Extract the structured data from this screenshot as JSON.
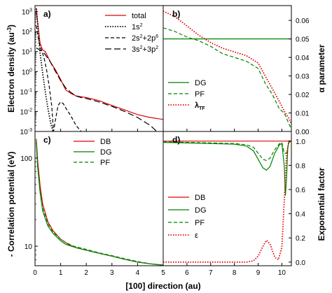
{
  "figure": {
    "xlabel": "[100] direction (au)",
    "ylabel_top_left": "Electron density (au",
    "ylabel_top_left_sup": "-3",
    "ylabel_top_left_tail": ")",
    "ylabel_top_right": "α parameter",
    "ylabel_bottom_left": "- Correlation potential (eV)",
    "ylabel_bottom_right": "Exponential factor"
  },
  "chart_data": [
    {
      "panel": "a)",
      "type": "line",
      "y_scale": "log",
      "xlim": [
        0,
        5
      ],
      "ylim": [
        0.001,
        2000
      ],
      "x_ticks": [],
      "y_ticks": [
        "10",
        "10",
        "10",
        "10",
        "10",
        "10",
        "10"
      ],
      "y_tick_exp": [
        "-3",
        "-2",
        "-1",
        "0",
        "1",
        "2",
        "3"
      ],
      "legend_position": "top-right",
      "legend": [
        {
          "label": "total",
          "style": "solid",
          "color": "#e00000"
        },
        {
          "label": "1s",
          "sup": "2",
          "style": "dotted",
          "color": "#000000"
        },
        {
          "label": "2s",
          "sup": "2",
          "mid": "+2p",
          "sup2": "6",
          "style": "dashed",
          "color": "#000000"
        },
        {
          "label": "3s",
          "sup": "2",
          "mid": "+3p",
          "sup2": "2",
          "style": "longdash",
          "color": "#000000"
        }
      ],
      "series": [
        {
          "name": "total",
          "x": [
            0.05,
            0.1,
            0.2,
            0.3,
            0.4,
            0.6,
            0.8,
            1.0,
            1.2,
            1.4,
            1.6,
            1.8,
            2.0,
            2.5,
            3.0,
            3.5,
            4.0,
            4.5,
            5.0
          ],
          "y": [
            1500,
            300,
            25,
            12,
            10,
            3,
            1.2,
            0.4,
            0.12,
            0.08,
            0.06,
            0.055,
            0.05,
            0.035,
            0.02,
            0.012,
            0.007,
            0.005,
            0.004
          ]
        },
        {
          "name": "1s2",
          "x": [
            0.05,
            0.1,
            0.2,
            0.3,
            0.4,
            0.5,
            0.6,
            0.7
          ],
          "y": [
            1400,
            250,
            8,
            0.8,
            0.1,
            0.015,
            0.003,
            0.001
          ]
        },
        {
          "name": "2s2+2p6",
          "x": [
            0.05,
            0.15,
            0.25,
            0.35,
            0.45,
            0.55,
            0.65,
            0.72,
            0.8,
            0.9,
            1.0,
            1.1,
            1.2,
            1.4,
            1.6,
            1.8
          ],
          "y": [
            200,
            30,
            12,
            5,
            1.2,
            0.2,
            0.02,
            0.001,
            0.004,
            0.02,
            0.03,
            0.025,
            0.015,
            0.006,
            0.002,
            0.001
          ]
        },
        {
          "name": "3s2+3p2",
          "x": [
            0.05,
            0.2,
            0.3,
            0.4,
            0.6,
            0.8,
            1.0,
            1.2,
            1.4,
            1.6,
            1.8,
            2.0,
            2.5,
            3.0,
            3.5,
            4.0,
            4.5,
            4.75
          ],
          "y": [
            15,
            12,
            10,
            7,
            3,
            1,
            0.35,
            0.15,
            0.09,
            0.06,
            0.05,
            0.045,
            0.03,
            0.018,
            0.01,
            0.005,
            0.002,
            0.001
          ]
        }
      ]
    },
    {
      "panel": "b)",
      "type": "line",
      "xlim": [
        5,
        10.4
      ],
      "ylim": [
        0,
        0.068
      ],
      "y_ticks": [
        "0.00",
        "0.01",
        "0.02",
        "0.03",
        "0.04",
        "0.05",
        "0.06"
      ],
      "legend_position": "bottom-left",
      "legend": [
        {
          "label": "DG",
          "style": "solid",
          "color": "#008000"
        },
        {
          "label": "PF",
          "style": "dashed",
          "color": "#008000"
        },
        {
          "label": "λ",
          "sub": "TF",
          "style": "dotted",
          "color": "#e00000"
        }
      ],
      "series": [
        {
          "name": "DG",
          "x": [
            5,
            10.4
          ],
          "y": [
            0.05,
            0.05
          ]
        },
        {
          "name": "PF",
          "x": [
            5,
            5.5,
            6,
            6.5,
            7,
            7.5,
            8,
            8.5,
            9,
            9.3,
            9.6,
            9.9,
            10.1,
            10.3,
            10.4
          ],
          "y": [
            0.056,
            0.054,
            0.051,
            0.049,
            0.046,
            0.042,
            0.04,
            0.038,
            0.034,
            0.026,
            0.02,
            0.012,
            0.01,
            0.004,
            0.0015
          ]
        },
        {
          "name": "λTF",
          "x": [
            5,
            5.5,
            6,
            6.5,
            7,
            7.5,
            8,
            8.5,
            9,
            9.3,
            9.6,
            9.9,
            10.1,
            10.3,
            10.4
          ],
          "y": [
            0.065,
            0.062,
            0.057,
            0.052,
            0.048,
            0.045,
            0.043,
            0.041,
            0.037,
            0.03,
            0.023,
            0.016,
            0.011,
            0.007,
            0.004
          ]
        }
      ]
    },
    {
      "panel": "c)",
      "type": "line",
      "y_scale": "log",
      "xlim": [
        0,
        5
      ],
      "ylim": [
        6,
        200
      ],
      "x_ticks": [
        "0",
        "1",
        "2",
        "3",
        "4",
        "5"
      ],
      "y_ticks": [
        "10",
        "100"
      ],
      "legend_position": "top-right",
      "legend": [
        {
          "label": "DB",
          "style": "solid",
          "color": "#e00000"
        },
        {
          "label": "DG",
          "style": "solid",
          "color": "#008000"
        },
        {
          "label": "PF",
          "style": "dashed",
          "color": "#008000"
        }
      ],
      "series": [
        {
          "name": "DB",
          "x": [
            0.05,
            0.1,
            0.2,
            0.3,
            0.5,
            0.7,
            1.0,
            1.3,
            1.6,
            2.0,
            2.5,
            3.0,
            3.5,
            4.0,
            4.5,
            5.0
          ],
          "y": [
            165,
            95,
            48,
            30,
            19,
            15,
            12,
            10.5,
            9.6,
            9.0,
            8.3,
            7.7,
            7.1,
            6.6,
            6.3,
            6.1
          ]
        },
        {
          "name": "DG",
          "x": [
            0.05,
            0.1,
            0.2,
            0.3,
            0.5,
            0.7,
            1.0,
            1.2,
            1.5,
            2.0,
            2.5,
            3.0,
            3.5,
            4.0,
            4.5,
            5.0
          ],
          "y": [
            150,
            80,
            40,
            25,
            17,
            14,
            11.5,
            10.5,
            9.8,
            9.0,
            8.3,
            7.7,
            7.1,
            6.6,
            6.3,
            6.1
          ]
        },
        {
          "name": "PF",
          "x": [
            0.05,
            0.1,
            0.2,
            0.3,
            0.5,
            0.7,
            1.0,
            1.2,
            1.5,
            2.0,
            2.5,
            3.0,
            3.5,
            4.0,
            4.5,
            5.0
          ],
          "y": [
            155,
            85,
            42,
            27,
            18,
            14.5,
            12,
            11,
            10,
            9.2,
            8.4,
            7.8,
            7.2,
            6.7,
            6.3,
            6.1
          ]
        }
      ]
    },
    {
      "panel": "d)",
      "type": "line",
      "xlim": [
        5,
        10.4
      ],
      "ylim": [
        -0.03,
        1.08
      ],
      "x_ticks": [
        "6",
        "7",
        "8",
        "9",
        "10"
      ],
      "y_ticks": [
        "0.0",
        "0.2",
        "0.4",
        "0.6",
        "0.8",
        "1.0"
      ],
      "legend_position": "bottom-left",
      "legend": [
        {
          "label": "DB",
          "style": "solid",
          "color": "#e00000"
        },
        {
          "label": "DG",
          "style": "solid",
          "color": "#008000"
        },
        {
          "label": "PF",
          "style": "dashed",
          "color": "#008000"
        },
        {
          "label": "ε",
          "style": "dotted",
          "color": "#e00000"
        }
      ],
      "series": [
        {
          "name": "DB",
          "x": [
            5,
            10.4
          ],
          "y": [
            1.0,
            1.0
          ]
        },
        {
          "name": "DG",
          "x": [
            5,
            6,
            7,
            8,
            8.5,
            8.8,
            9.0,
            9.2,
            9.35,
            9.5,
            9.7,
            9.9,
            10.0,
            10.1,
            10.15,
            10.2,
            10.25,
            10.3,
            10.4
          ],
          "y": [
            0.99,
            0.985,
            0.98,
            0.975,
            0.96,
            0.92,
            0.85,
            0.78,
            0.76,
            0.79,
            0.9,
            0.97,
            0.98,
            0.8,
            0.55,
            0.7,
            0.95,
            1.0,
            1.0
          ]
        },
        {
          "name": "PF",
          "x": [
            5,
            6,
            7,
            8,
            8.5,
            8.8,
            9.0,
            9.2,
            9.35,
            9.5,
            9.7,
            9.9,
            10.0,
            10.1,
            10.2,
            10.3,
            10.4
          ],
          "y": [
            0.995,
            0.99,
            0.985,
            0.98,
            0.97,
            0.95,
            0.9,
            0.85,
            0.84,
            0.86,
            0.93,
            0.98,
            0.99,
            0.9,
            0.9,
            0.99,
            1.0
          ]
        },
        {
          "name": "ε",
          "x": [
            5,
            7,
            8,
            8.5,
            8.8,
            9.0,
            9.2,
            9.35,
            9.5,
            9.7,
            9.85,
            10.0,
            10.1,
            10.2,
            10.3,
            10.4
          ],
          "y": [
            0,
            0,
            0,
            0,
            0.01,
            0.05,
            0.13,
            0.18,
            0.15,
            0.04,
            0.02,
            0.12,
            0.5,
            0.9,
            1.0,
            1.0
          ]
        }
      ]
    }
  ]
}
